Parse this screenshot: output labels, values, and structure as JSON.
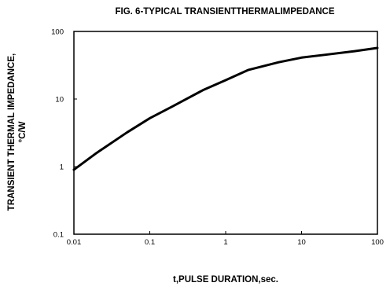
{
  "chart_data": {
    "type": "line",
    "title": "FIG. 6-TYPICAL TRANSIENTTHERMALIMPEDANCE",
    "xlabel": "t,PULSE DURATION,sec.",
    "ylabel_line1": "TRANSIENT THERMAL IMPEDANCE,",
    "ylabel_line2": "°C/W",
    "x_scale": "log",
    "y_scale": "log",
    "xlim": [
      0.01,
      100
    ],
    "ylim": [
      0.1,
      100
    ],
    "x_ticks": [
      {
        "value": 0.01,
        "label": "0.01"
      },
      {
        "value": 0.1,
        "label": "0.1"
      },
      {
        "value": 1,
        "label": "1"
      },
      {
        "value": 10,
        "label": "10"
      },
      {
        "value": 100,
        "label": "100"
      }
    ],
    "y_ticks": [
      {
        "value": 0.1,
        "label": "0.1"
      },
      {
        "value": 1,
        "label": "1"
      },
      {
        "value": 10,
        "label": "10"
      },
      {
        "value": 100,
        "label": "100"
      }
    ],
    "grid": false,
    "series": [
      {
        "color": "#000000",
        "x": [
          0.01,
          0.02,
          0.05,
          0.1,
          0.2,
          0.5,
          1,
          2,
          5,
          10,
          20,
          50,
          100
        ],
        "y": [
          0.9,
          1.6,
          3.2,
          5.2,
          7.8,
          13.5,
          19,
          27,
          35,
          41,
          45,
          51,
          57
        ]
      }
    ]
  }
}
